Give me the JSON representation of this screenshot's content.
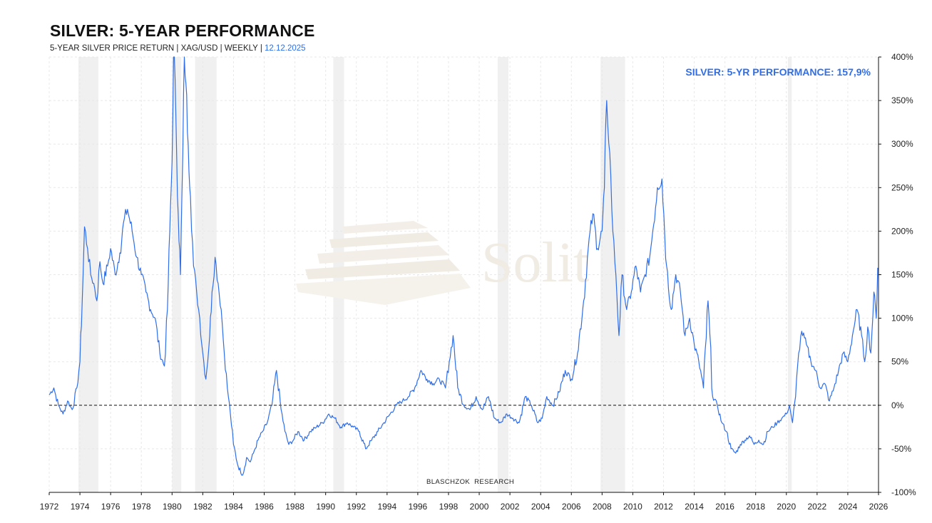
{
  "header": {
    "title": "SILVER: 5-YEAR PERFORMANCE",
    "subtitle": "5-YEAR SILVER PRICE RETURN | XAG/USD | WEEKLY | ",
    "subtitle_date": "12.12.2025"
  },
  "annotation": "SILVER: 5-YR PERFORMANCE: 157,9%",
  "credit": {
    "part1": "BLASCHZOK",
    "part2": "RESEARCH"
  },
  "watermark": {
    "text": "Solit"
  },
  "colors": {
    "line": "#2f6ee8",
    "recession_band": "#f0f0f0",
    "grid": "#e8e8e8"
  },
  "chart_data": {
    "type": "line",
    "title": "SILVER: 5-YEAR PERFORMANCE",
    "xlim": [
      1972,
      2026
    ],
    "ylim": [
      -100,
      400
    ],
    "y_axis_position": "right",
    "x_ticks": [
      "1972",
      "1974",
      "1976",
      "1978",
      "1980",
      "1982",
      "1984",
      "1986",
      "1988",
      "1990",
      "1992",
      "1994",
      "1996",
      "1998",
      "2000",
      "2002",
      "2004",
      "2006",
      "2008",
      "2010",
      "2012",
      "2014",
      "2016",
      "2018",
      "2020",
      "2022",
      "2024",
      "2026"
    ],
    "y_ticks": [
      "400%",
      "350%",
      "300%",
      "250%",
      "200%",
      "150%",
      "100%",
      "50%",
      "0%",
      "-50%",
      "-100%"
    ],
    "y_tick_values": [
      400,
      350,
      300,
      250,
      200,
      150,
      100,
      50,
      0,
      -50,
      -100
    ],
    "zero_line": {
      "y": 0,
      "style": "dashed"
    },
    "grid": true,
    "shaded_periods": [
      [
        1973.9,
        1975.2
      ],
      [
        1980.0,
        1980.6
      ],
      [
        1981.5,
        1982.9
      ],
      [
        1990.5,
        1991.2
      ],
      [
        2001.2,
        2001.9
      ],
      [
        2007.9,
        2009.5
      ],
      [
        2020.1,
        2020.35
      ]
    ],
    "series": [
      {
        "x": [
          1972.0,
          1972.3,
          1972.6,
          1972.9,
          1973.2,
          1973.5,
          1973.8,
          1974.0,
          1974.15,
          1974.3,
          1974.5,
          1974.7,
          1974.9,
          1975.1,
          1975.3,
          1975.5,
          1975.8,
          1976.0,
          1976.3,
          1976.6,
          1976.9,
          1977.1,
          1977.4,
          1977.7,
          1978.0,
          1978.3,
          1978.6,
          1978.9,
          1979.2,
          1979.5,
          1979.7,
          1979.85,
          1980.0,
          1980.1,
          1980.25,
          1980.4,
          1980.55,
          1980.7,
          1980.8,
          1980.9,
          1981.05,
          1981.2,
          1981.4,
          1981.6,
          1981.8,
          1982.0,
          1982.2,
          1982.45,
          1982.6,
          1982.8,
          1983.0,
          1983.2,
          1983.4,
          1983.6,
          1983.8,
          1984.0,
          1984.3,
          1984.6,
          1984.85,
          1985.1,
          1985.3,
          1985.6,
          1985.9,
          1986.2,
          1986.5,
          1986.8,
          1987.1,
          1987.35,
          1987.6,
          1987.9,
          1988.2,
          1988.6,
          1989.0,
          1989.4,
          1989.8,
          1990.2,
          1990.6,
          1991.0,
          1991.4,
          1991.8,
          1992.2,
          1992.6,
          1993.0,
          1993.4,
          1993.8,
          1994.2,
          1994.6,
          1995.0,
          1995.4,
          1995.8,
          1996.2,
          1996.6,
          1997.0,
          1997.4,
          1997.8,
          1998.05,
          1998.3,
          1998.6,
          1999.0,
          1999.4,
          1999.8,
          2000.2,
          2000.6,
          2001.0,
          2001.4,
          2001.8,
          2002.2,
          2002.6,
          2003.0,
          2003.4,
          2003.8,
          2004.1,
          2004.4,
          2004.8,
          2005.2,
          2005.6,
          2006.0,
          2006.4,
          2006.8,
          2007.1,
          2007.4,
          2007.7,
          2008.0,
          2008.15,
          2008.3,
          2008.5,
          2008.7,
          2008.9,
          2009.1,
          2009.3,
          2009.6,
          2009.9,
          2010.2,
          2010.5,
          2010.8,
          2011.1,
          2011.3,
          2011.6,
          2011.9,
          2012.2,
          2012.5,
          2012.8,
          2013.1,
          2013.4,
          2013.7,
          2014.0,
          2014.3,
          2014.6,
          2014.9,
          2015.2,
          2015.5,
          2015.8,
          2016.1,
          2016.4,
          2016.7,
          2017.0,
          2017.3,
          2017.6,
          2017.9,
          2018.2,
          2018.5,
          2018.8,
          2019.1,
          2019.4,
          2019.7,
          2020.0,
          2020.2,
          2020.4,
          2020.6,
          2020.8,
          2021.0,
          2021.3,
          2021.6,
          2021.9,
          2022.2,
          2022.5,
          2022.8,
          2023.1,
          2023.4,
          2023.7,
          2024.0,
          2024.3,
          2024.6,
          2024.9,
          2025.1,
          2025.3,
          2025.5,
          2025.7,
          2025.85,
          2025.95
        ],
        "y": [
          12,
          20,
          0,
          -10,
          5,
          -5,
          20,
          50,
          120,
          205,
          180,
          150,
          140,
          120,
          165,
          140,
          160,
          180,
          150,
          175,
          215,
          225,
          200,
          170,
          150,
          130,
          110,
          100,
          60,
          45,
          110,
          200,
          280,
          420,
          330,
          220,
          150,
          290,
          400,
          370,
          300,
          240,
          160,
          130,
          100,
          60,
          30,
          80,
          130,
          170,
          140,
          110,
          60,
          20,
          -10,
          -45,
          -70,
          -80,
          -60,
          -65,
          -55,
          -40,
          -30,
          -20,
          0,
          40,
          -5,
          -30,
          -45,
          -40,
          -30,
          -40,
          -30,
          -25,
          -20,
          -10,
          -15,
          -25,
          -20,
          -25,
          -30,
          -50,
          -40,
          -30,
          -20,
          -10,
          0,
          5,
          10,
          20,
          40,
          30,
          25,
          30,
          20,
          50,
          80,
          20,
          0,
          -5,
          10,
          -5,
          10,
          -15,
          -20,
          -10,
          -15,
          -20,
          10,
          0,
          -20,
          -15,
          10,
          0,
          15,
          40,
          30,
          60,
          120,
          180,
          220,
          180,
          200,
          250,
          350,
          290,
          200,
          150,
          80,
          150,
          110,
          130,
          160,
          130,
          150,
          170,
          200,
          250,
          260,
          160,
          110,
          150,
          130,
          80,
          100,
          70,
          50,
          20,
          120,
          10,
          0,
          -20,
          -30,
          -50,
          -55,
          -45,
          -40,
          -35,
          -45,
          -40,
          -45,
          -30,
          -25,
          -20,
          -15,
          -10,
          0,
          -20,
          10,
          60,
          85,
          70,
          50,
          40,
          20,
          25,
          5,
          20,
          40,
          60,
          50,
          80,
          110,
          80,
          50,
          90,
          60,
          130,
          100,
          157.9
        ]
      }
    ]
  },
  "y_axis_labels": [
    "400%",
    "350%",
    "300%",
    "250%",
    "200%",
    "150%",
    "100%",
    "50%",
    "0%",
    "-50%",
    "-100%"
  ],
  "x_axis_labels": [
    "1972",
    "1974",
    "1976",
    "1978",
    "1980",
    "1982",
    "1984",
    "1986",
    "1988",
    "1990",
    "1992",
    "1994",
    "1996",
    "1998",
    "2000",
    "2002",
    "2004",
    "2006",
    "2008",
    "2010",
    "2012",
    "2014",
    "2016",
    "2018",
    "2020",
    "2022",
    "2024",
    "2026"
  ]
}
